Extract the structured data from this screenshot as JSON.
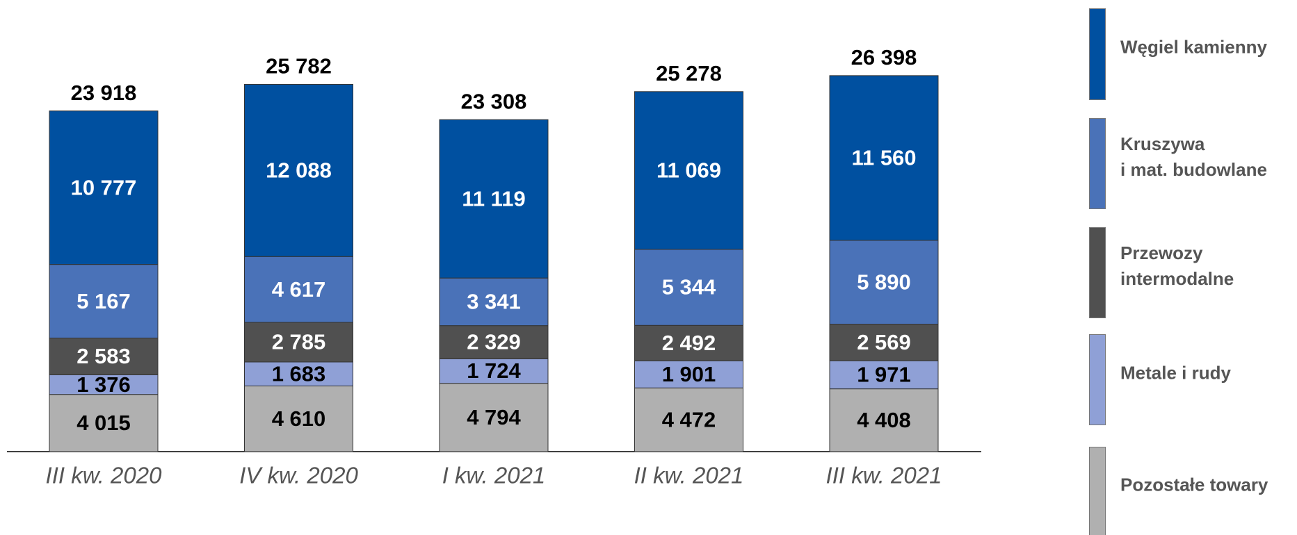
{
  "chart_data": {
    "type": "stacked_bar",
    "categories": [
      "III kw. 2020",
      "IV kw. 2020",
      "I kw. 2021",
      "II kw. 2021",
      "III kw. 2021"
    ],
    "series": [
      {
        "name": "Pozostałe towary",
        "color": "#b0b0b0",
        "label_color": "#000000",
        "values": [
          4015,
          4610,
          4794,
          4472,
          4408
        ],
        "value_labels": [
          "4 015",
          "4 610",
          "4 794",
          "4 472",
          "4 408"
        ]
      },
      {
        "name": "Metale i rudy",
        "color": "#8fa0d6",
        "label_color": "#000000",
        "values": [
          1376,
          1683,
          1724,
          1901,
          1971
        ],
        "value_labels": [
          "1 376",
          "1 683",
          "1 724",
          "1 901",
          "1 971"
        ]
      },
      {
        "name": "Przewozy\nintermodalne",
        "color": "#505050",
        "label_color": "#ffffff",
        "values": [
          2583,
          2785,
          2329,
          2492,
          2569
        ],
        "value_labels": [
          "2 583",
          "2 785",
          "2 329",
          "2 492",
          "2 569"
        ]
      },
      {
        "name": "Kruszywa\ni mat. budowlane",
        "color": "#4a72b8",
        "label_color": "#ffffff",
        "values": [
          5167,
          4617,
          3341,
          5344,
          5890
        ],
        "value_labels": [
          "5 167",
          "4 617",
          "3 341",
          "5 344",
          "5 890"
        ]
      },
      {
        "name": "Węgiel kamienny",
        "color": "#0050a0",
        "label_color": "#ffffff",
        "values": [
          10777,
          12088,
          11119,
          11069,
          11560
        ],
        "value_labels": [
          "10 777",
          "12 088",
          "11 119",
          "11 069",
          "11 560"
        ]
      }
    ],
    "totals": [
      23918,
      25782,
      23308,
      25278,
      26398
    ],
    "total_labels": [
      "23 918",
      "25 782",
      "23 308",
      "25 278",
      "26 398"
    ]
  }
}
